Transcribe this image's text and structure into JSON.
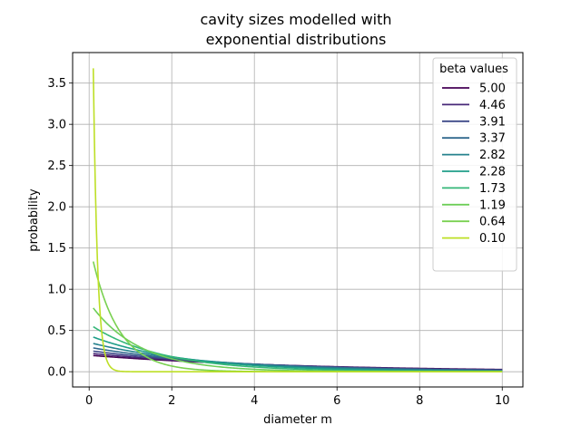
{
  "chart_data": {
    "type": "line",
    "title_lines": [
      "cavity sizes modelled with",
      "exponential distributions"
    ],
    "xlabel": "diameter m",
    "ylabel": "probability",
    "xlim": [
      -0.4,
      10.5
    ],
    "ylim": [
      -0.185,
      3.87
    ],
    "xticks": [
      0,
      2,
      4,
      6,
      8,
      10
    ],
    "xtick_labels": [
      "0",
      "2",
      "4",
      "6",
      "8",
      "10"
    ],
    "yticks": [
      0.0,
      0.5,
      1.0,
      1.5,
      2.0,
      2.5,
      3.0,
      3.5
    ],
    "ytick_labels": [
      "0.0",
      "0.5",
      "1.0",
      "1.5",
      "2.0",
      "2.5",
      "3.0",
      "3.5"
    ],
    "grid": true,
    "legend_title": "beta values",
    "legend_position": "top-right",
    "x_range": [
      0.1,
      10
    ],
    "formula": "y = exp(-x / beta) / beta",
    "series": [
      {
        "name": "5.00",
        "beta": 5.0,
        "color": "#440154"
      },
      {
        "name": "4.46",
        "beta": 4.46,
        "color": "#482878"
      },
      {
        "name": "3.91",
        "beta": 3.91,
        "color": "#3e4989"
      },
      {
        "name": "3.37",
        "beta": 3.37,
        "color": "#31688e"
      },
      {
        "name": "2.82",
        "beta": 2.82,
        "color": "#26828e"
      },
      {
        "name": "2.28",
        "beta": 2.28,
        "color": "#1f9e89"
      },
      {
        "name": "1.73",
        "beta": 1.73,
        "color": "#35b779"
      },
      {
        "name": "1.19",
        "beta": 1.19,
        "color": "#6ece58"
      },
      {
        "name": "0.64",
        "beta": 0.64,
        "color": "#7ad151"
      },
      {
        "name": "0.10",
        "beta": 0.1,
        "color": "#bddf26"
      }
    ]
  }
}
